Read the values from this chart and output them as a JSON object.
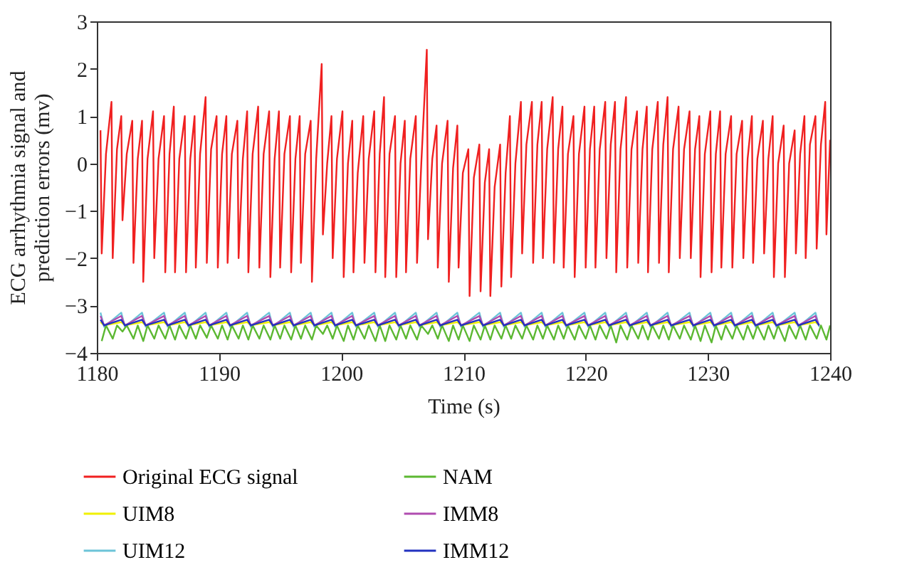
{
  "chart_data": {
    "type": "line",
    "xlabel": "Time (s)",
    "ylabel": "ECG arrhythmia signal and\nprediction errors (mv)",
    "xlim": [
      1180,
      1240
    ],
    "ylim": [
      -4,
      3
    ],
    "xticks": [
      1180,
      1190,
      1200,
      1210,
      1220,
      1230,
      1240
    ],
    "yticks": [
      -4,
      -3,
      -2,
      -1,
      0,
      1,
      2,
      3
    ],
    "legend": "bottom",
    "grid": false,
    "x": [
      1180.3,
      1180.6,
      1182.0,
      1182.3,
      1183.7,
      1184.0,
      1185.5,
      1185.8,
      1187.2,
      1187.5,
      1188.9,
      1189.2,
      1190.6,
      1190.9,
      1192.3,
      1192.6,
      1194.1,
      1194.4,
      1195.8,
      1196.1,
      1197.5,
      1197.8,
      1199.2,
      1199.5,
      1200.9,
      1201.2,
      1202.7,
      1203.0,
      1204.4,
      1204.7,
      1206.1,
      1206.4,
      1207.8,
      1208.1,
      1209.5,
      1209.8,
      1211.3,
      1211.6,
      1213.0,
      1213.3,
      1214.7,
      1215.0,
      1216.4,
      1216.7,
      1218.1,
      1218.4,
      1219.9,
      1220.2,
      1221.6,
      1221.9,
      1223.3,
      1223.6,
      1225.0,
      1225.3,
      1226.7,
      1227.0,
      1228.5,
      1228.8,
      1230.2,
      1230.5,
      1231.9,
      1232.2,
      1233.6,
      1233.9,
      1235.3,
      1235.6,
      1237.1,
      1237.4,
      1238.8,
      1239.1
    ],
    "series": [
      {
        "name": "Original ECG signal",
        "color": "#f02020",
        "x": [
          1180.3,
          1180.4,
          1180.75,
          1181.2,
          1181.3,
          1181.65,
          1182.0,
          1182.1,
          1182.45,
          1182.9,
          1183.0,
          1183.35,
          1183.7,
          1183.8,
          1184.15,
          1184.6,
          1184.7,
          1185.05,
          1185.5,
          1185.6,
          1185.95,
          1186.3,
          1186.4,
          1186.75,
          1187.2,
          1187.3,
          1187.65,
          1188.0,
          1188.1,
          1188.45,
          1188.9,
          1189.0,
          1189.35,
          1189.8,
          1189.9,
          1190.25,
          1190.6,
          1190.7,
          1191.05,
          1191.5,
          1191.6,
          1191.95,
          1192.3,
          1192.4,
          1192.75,
          1193.2,
          1193.3,
          1193.65,
          1194.1,
          1194.2,
          1194.55,
          1194.9,
          1195.0,
          1195.35,
          1195.8,
          1195.9,
          1196.25,
          1196.6,
          1196.7,
          1197.05,
          1197.5,
          1197.6,
          1197.95,
          1198.4,
          1198.5,
          1198.85,
          1199.2,
          1199.3,
          1199.65,
          1200.1,
          1200.2,
          1200.55,
          1200.9,
          1201.0,
          1201.35,
          1201.8,
          1201.9,
          1202.25,
          1202.7,
          1202.8,
          1203.15,
          1203.5,
          1203.6,
          1203.95,
          1204.4,
          1204.5,
          1204.85,
          1205.2,
          1205.3,
          1205.65,
          1206.1,
          1206.2,
          1206.55,
          1207.0,
          1207.1,
          1207.45,
          1207.8,
          1207.9,
          1208.25,
          1208.7,
          1208.8,
          1209.15,
          1209.5,
          1209.6,
          1209.95,
          1210.4,
          1210.5,
          1210.85,
          1211.3,
          1211.4,
          1211.75,
          1212.1,
          1212.2,
          1212.55,
          1213.0,
          1213.1,
          1213.45,
          1213.8,
          1213.9,
          1214.25,
          1214.7,
          1214.8,
          1215.15,
          1215.6,
          1215.7,
          1216.05,
          1216.4,
          1216.5,
          1216.85,
          1217.3,
          1217.4,
          1217.75,
          1218.1,
          1218.2,
          1218.55,
          1219.0,
          1219.1,
          1219.45,
          1219.9,
          1220.0,
          1220.35,
          1220.7,
          1220.8,
          1221.15,
          1221.6,
          1221.7,
          1222.05,
          1222.4,
          1222.5,
          1222.85,
          1223.3,
          1223.4,
          1223.75,
          1224.2,
          1224.3,
          1224.65,
          1225.0,
          1225.1,
          1225.45,
          1225.9,
          1226.0,
          1226.35,
          1226.7,
          1226.8,
          1227.15,
          1227.6,
          1227.7,
          1228.05,
          1228.5,
          1228.6,
          1228.95,
          1229.3,
          1229.4,
          1229.75,
          1230.2,
          1230.3,
          1230.65,
          1231.0,
          1231.1,
          1231.45,
          1231.9,
          1232.0,
          1232.35,
          1232.8,
          1232.9,
          1233.25,
          1233.6,
          1233.7,
          1234.05,
          1234.5,
          1234.6,
          1234.95,
          1235.3,
          1235.4,
          1235.75,
          1236.2,
          1236.3,
          1236.65,
          1237.1,
          1237.2,
          1237.55,
          1237.9,
          1238.0,
          1238.35,
          1238.8,
          1238.9,
          1239.25,
          1239.6,
          1239.7,
          1240.0
        ],
        "values": [
          0.7,
          -1.9,
          0.2,
          1.3,
          -2.0,
          0.3,
          1.0,
          -1.2,
          0.2,
          0.9,
          -2.1,
          0.1,
          0.9,
          -2.5,
          0.1,
          1.1,
          -2.0,
          0.1,
          1.0,
          -2.3,
          0.2,
          1.2,
          -2.3,
          0.1,
          1.0,
          -2.3,
          0.1,
          1.0,
          -2.2,
          0.2,
          1.4,
          -2.1,
          0.3,
          1.0,
          -2.2,
          0.2,
          1.0,
          -2.1,
          0.2,
          0.9,
          -2.0,
          0.1,
          1.1,
          -2.3,
          0.2,
          1.2,
          -2.2,
          0.2,
          1.1,
          -2.4,
          0.1,
          1.1,
          -2.2,
          0.2,
          1.0,
          -2.3,
          0.1,
          1.0,
          -2.1,
          0.2,
          0.9,
          -2.5,
          0.1,
          2.1,
          -1.5,
          0.0,
          1.0,
          -2.0,
          0.1,
          1.1,
          -2.4,
          0.0,
          0.9,
          -2.3,
          -0.2,
          1.0,
          -2.1,
          0.1,
          1.1,
          -2.3,
          0.2,
          1.4,
          -2.4,
          0.2,
          1.0,
          -2.4,
          0.0,
          0.9,
          -2.3,
          0.1,
          1.0,
          -2.1,
          0.0,
          2.4,
          -1.6,
          0.1,
          0.8,
          -2.2,
          0.0,
          0.9,
          -2.5,
          -0.1,
          0.8,
          -2.2,
          -0.2,
          0.3,
          -2.8,
          -0.3,
          0.4,
          -2.7,
          -0.4,
          0.3,
          -2.8,
          -0.5,
          0.4,
          -2.6,
          -0.2,
          1.0,
          -2.4,
          0.0,
          1.3,
          -1.9,
          0.4,
          1.3,
          -2.1,
          0.4,
          1.3,
          -2.0,
          0.3,
          1.4,
          -2.1,
          0.3,
          1.2,
          -2.2,
          0.2,
          1.0,
          -2.4,
          0.2,
          1.2,
          -2.2,
          0.3,
          1.2,
          -2.2,
          0.3,
          1.3,
          -2.0,
          0.4,
          1.3,
          -2.3,
          0.3,
          1.4,
          -2.2,
          0.3,
          1.1,
          -2.1,
          0.3,
          1.2,
          -2.3,
          0.3,
          1.3,
          -2.1,
          0.4,
          1.4,
          -2.3,
          0.3,
          1.2,
          -2.0,
          0.3,
          1.1,
          -2.0,
          0.3,
          1.0,
          -2.4,
          0.2,
          1.1,
          -2.3,
          0.2,
          1.1,
          -2.2,
          0.2,
          1.0,
          -2.2,
          0.2,
          0.9,
          -2.0,
          0.1,
          1.0,
          -2.1,
          0.1,
          0.9,
          -1.9,
          0.1,
          1.0,
          -2.4,
          0.0,
          0.8,
          -2.4,
          0.0,
          0.7,
          -1.9,
          0.2,
          1.0,
          -2.0,
          0.4,
          1.0,
          -1.8,
          0.4,
          1.3,
          -1.5,
          0.5
        ]
      },
      {
        "name": "UIM8",
        "color": "#f0f000",
        "values": [
          -3.35,
          -3.42,
          -3.35,
          -3.42,
          -3.35,
          -3.42,
          -3.35,
          -3.42,
          -3.35,
          -3.42,
          -3.35,
          -3.42,
          -3.35,
          -3.42,
          -3.35,
          -3.42,
          -3.35,
          -3.42,
          -3.35,
          -3.42,
          -3.35,
          -3.42,
          -3.35,
          -3.42,
          -3.35,
          -3.42,
          -3.35,
          -3.42,
          -3.35,
          -3.42,
          -3.35,
          -3.42,
          -3.35,
          -3.42,
          -3.35,
          -3.42,
          -3.35,
          -3.42,
          -3.35,
          -3.42,
          -3.35,
          -3.42,
          -3.35,
          -3.42,
          -3.35,
          -3.42,
          -3.35,
          -3.42,
          -3.35,
          -3.42,
          -3.35,
          -3.42,
          -3.35,
          -3.42,
          -3.35,
          -3.42,
          -3.35,
          -3.42,
          -3.35,
          -3.42,
          -3.35,
          -3.42,
          -3.35,
          -3.42,
          -3.35,
          -3.42,
          -3.35,
          -3.42,
          -3.35,
          -3.42
        ]
      },
      {
        "name": "UIM12",
        "color": "#6cc4d8",
        "values": [
          -3.15,
          -3.45,
          -3.15,
          -3.45,
          -3.15,
          -3.45,
          -3.15,
          -3.45,
          -3.15,
          -3.45,
          -3.15,
          -3.45,
          -3.15,
          -3.45,
          -3.15,
          -3.45,
          -3.15,
          -3.45,
          -3.15,
          -3.45,
          -3.15,
          -3.45,
          -3.15,
          -3.45,
          -3.15,
          -3.45,
          -3.15,
          -3.45,
          -3.15,
          -3.45,
          -3.15,
          -3.45,
          -3.15,
          -3.45,
          -3.15,
          -3.45,
          -3.15,
          -3.45,
          -3.15,
          -3.45,
          -3.15,
          -3.45,
          -3.15,
          -3.45,
          -3.15,
          -3.45,
          -3.15,
          -3.45,
          -3.15,
          -3.45,
          -3.15,
          -3.45,
          -3.15,
          -3.45,
          -3.15,
          -3.45,
          -3.15,
          -3.45,
          -3.15,
          -3.45,
          -3.15,
          -3.45,
          -3.15,
          -3.45,
          -3.15,
          -3.45,
          -3.15,
          -3.45,
          -3.15,
          -3.45
        ]
      },
      {
        "name": "NAM",
        "color": "#5cb832",
        "x": [
          1180.4,
          1180.75,
          1181.3,
          1181.65,
          1182.1,
          1182.45,
          1183.0,
          1183.35,
          1183.8,
          1184.15,
          1184.7,
          1185.05,
          1185.6,
          1185.95,
          1186.4,
          1186.75,
          1187.3,
          1187.65,
          1188.1,
          1188.45,
          1189.0,
          1189.35,
          1189.9,
          1190.25,
          1190.7,
          1191.05,
          1191.6,
          1191.95,
          1192.4,
          1192.75,
          1193.3,
          1193.65,
          1194.2,
          1194.55,
          1195.0,
          1195.35,
          1195.9,
          1196.25,
          1196.7,
          1197.05,
          1197.6,
          1197.95,
          1198.5,
          1198.85,
          1199.3,
          1199.65,
          1200.2,
          1200.55,
          1201.0,
          1201.35,
          1201.9,
          1202.25,
          1202.8,
          1203.15,
          1203.6,
          1203.95,
          1204.5,
          1204.85,
          1205.3,
          1205.65,
          1206.2,
          1206.55,
          1207.1,
          1207.45,
          1207.9,
          1208.25,
          1208.8,
          1209.15,
          1209.6,
          1209.95,
          1210.5,
          1210.85,
          1211.4,
          1211.75,
          1212.2,
          1212.55,
          1213.1,
          1213.45,
          1213.9,
          1214.25,
          1214.8,
          1215.15,
          1215.7,
          1216.05,
          1216.5,
          1216.85,
          1217.4,
          1217.75,
          1218.2,
          1218.55,
          1219.1,
          1219.45,
          1220.0,
          1220.35,
          1220.8,
          1221.15,
          1221.7,
          1222.05,
          1222.5,
          1222.85,
          1223.4,
          1223.75,
          1224.3,
          1224.65,
          1225.1,
          1225.45,
          1226.0,
          1226.35,
          1226.8,
          1227.15,
          1227.7,
          1228.05,
          1228.6,
          1228.95,
          1229.4,
          1229.75,
          1230.3,
          1230.65,
          1231.1,
          1231.45,
          1232.0,
          1232.35,
          1232.9,
          1233.25,
          1233.7,
          1234.05,
          1234.6,
          1234.95,
          1235.4,
          1235.75,
          1236.3,
          1236.65,
          1237.2,
          1237.55,
          1238.0,
          1238.35,
          1238.9,
          1239.25,
          1239.7,
          1240.0
        ],
        "values": [
          -3.75,
          -3.42,
          -3.7,
          -3.42,
          -3.55,
          -3.42,
          -3.7,
          -3.42,
          -3.75,
          -3.42,
          -3.7,
          -3.42,
          -3.7,
          -3.42,
          -3.72,
          -3.42,
          -3.7,
          -3.42,
          -3.7,
          -3.42,
          -3.68,
          -3.42,
          -3.7,
          -3.42,
          -3.72,
          -3.42,
          -3.7,
          -3.42,
          -3.72,
          -3.42,
          -3.7,
          -3.42,
          -3.72,
          -3.42,
          -3.7,
          -3.42,
          -3.72,
          -3.42,
          -3.7,
          -3.42,
          -3.72,
          -3.42,
          -3.6,
          -3.42,
          -3.7,
          -3.42,
          -3.75,
          -3.42,
          -3.72,
          -3.42,
          -3.7,
          -3.42,
          -3.75,
          -3.42,
          -3.75,
          -3.42,
          -3.72,
          -3.42,
          -3.7,
          -3.42,
          -3.72,
          -3.42,
          -3.6,
          -3.42,
          -3.7,
          -3.42,
          -3.75,
          -3.42,
          -3.72,
          -3.42,
          -3.75,
          -3.42,
          -3.72,
          -3.42,
          -3.72,
          -3.42,
          -3.7,
          -3.42,
          -3.7,
          -3.42,
          -3.7,
          -3.42,
          -3.72,
          -3.42,
          -3.7,
          -3.42,
          -3.72,
          -3.42,
          -3.7,
          -3.42,
          -3.72,
          -3.42,
          -3.7,
          -3.42,
          -3.72,
          -3.42,
          -3.7,
          -3.42,
          -3.78,
          -3.42,
          -3.72,
          -3.42,
          -3.7,
          -3.42,
          -3.72,
          -3.42,
          -3.7,
          -3.42,
          -3.72,
          -3.42,
          -3.7,
          -3.42,
          -3.72,
          -3.42,
          -3.75,
          -3.42,
          -3.78,
          -3.42,
          -3.72,
          -3.42,
          -3.7,
          -3.42,
          -3.72,
          -3.42,
          -3.7,
          -3.42,
          -3.72,
          -3.42,
          -3.7,
          -3.42,
          -3.75,
          -3.42,
          -3.7,
          -3.42,
          -3.72,
          -3.42,
          -3.7,
          -3.42,
          -3.72,
          -3.42
        ]
      },
      {
        "name": "IMM8",
        "color": "#b04cb0",
        "values": [
          -3.22,
          -3.42,
          -3.22,
          -3.42,
          -3.22,
          -3.42,
          -3.22,
          -3.42,
          -3.22,
          -3.42,
          -3.22,
          -3.42,
          -3.22,
          -3.42,
          -3.22,
          -3.42,
          -3.22,
          -3.42,
          -3.22,
          -3.42,
          -3.22,
          -3.42,
          -3.22,
          -3.42,
          -3.22,
          -3.42,
          -3.22,
          -3.42,
          -3.22,
          -3.42,
          -3.22,
          -3.42,
          -3.22,
          -3.42,
          -3.22,
          -3.42,
          -3.22,
          -3.42,
          -3.22,
          -3.42,
          -3.22,
          -3.42,
          -3.22,
          -3.42,
          -3.22,
          -3.42,
          -3.22,
          -3.42,
          -3.22,
          -3.42,
          -3.22,
          -3.42,
          -3.22,
          -3.42,
          -3.22,
          -3.42,
          -3.22,
          -3.42,
          -3.22,
          -3.42,
          -3.22,
          -3.42,
          -3.22,
          -3.42,
          -3.22,
          -3.42,
          -3.22,
          -3.42,
          -3.22,
          -3.42
        ]
      },
      {
        "name": "IMM12",
        "color": "#2232c0",
        "values": [
          -3.3,
          -3.42,
          -3.3,
          -3.42,
          -3.3,
          -3.42,
          -3.3,
          -3.42,
          -3.3,
          -3.42,
          -3.3,
          -3.42,
          -3.3,
          -3.42,
          -3.3,
          -3.42,
          -3.3,
          -3.42,
          -3.3,
          -3.42,
          -3.3,
          -3.42,
          -3.3,
          -3.42,
          -3.3,
          -3.42,
          -3.3,
          -3.42,
          -3.3,
          -3.42,
          -3.3,
          -3.42,
          -3.3,
          -3.42,
          -3.3,
          -3.42,
          -3.3,
          -3.42,
          -3.3,
          -3.42,
          -3.3,
          -3.42,
          -3.3,
          -3.42,
          -3.3,
          -3.42,
          -3.3,
          -3.42,
          -3.3,
          -3.42,
          -3.3,
          -3.42,
          -3.3,
          -3.42,
          -3.3,
          -3.42,
          -3.3,
          -3.42,
          -3.3,
          -3.42,
          -3.3,
          -3.42,
          -3.3,
          -3.42,
          -3.3,
          -3.42,
          -3.3,
          -3.42,
          -3.3,
          -3.42
        ]
      }
    ]
  }
}
